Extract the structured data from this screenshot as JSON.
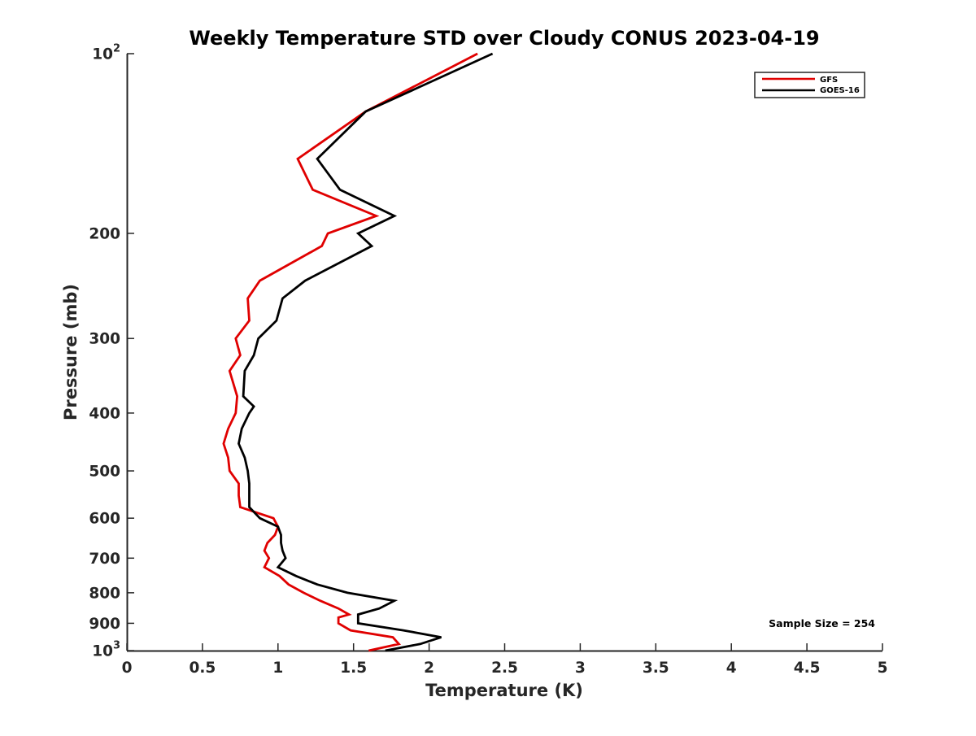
{
  "chart_data": {
    "type": "line",
    "title": "Weekly Temperature STD over Cloudy CONUS 2023-04-19",
    "xlabel": "Temperature (K)",
    "ylabel": "Pressure (mb)",
    "xlim": [
      0,
      5
    ],
    "ylim": [
      100,
      1000
    ],
    "y_scale": "log",
    "y_reversed": true,
    "grid": false,
    "legend_position": "top-right",
    "x_ticks": [
      0,
      0.5,
      1,
      1.5,
      2,
      2.5,
      3,
      3.5,
      4,
      4.5,
      5
    ],
    "x_tick_labels": [
      "0",
      "0.5",
      "1",
      "1.5",
      "2",
      "2.5",
      "3",
      "3.5",
      "4",
      "4.5",
      "5"
    ],
    "y_ticks": [
      100,
      200,
      300,
      400,
      500,
      600,
      700,
      800,
      900,
      1000
    ],
    "y_tick_labels": [
      {
        "base": "10",
        "exp": "2"
      },
      {
        "base": "200"
      },
      {
        "base": "300"
      },
      {
        "base": "400"
      },
      {
        "base": "500"
      },
      {
        "base": "600"
      },
      {
        "base": "700"
      },
      {
        "base": "800"
      },
      {
        "base": "900"
      },
      {
        "base": "10",
        "exp": "3"
      }
    ],
    "series": [
      {
        "name": "GFS",
        "color": "#e00000",
        "points": [
          [
            2.32,
            100
          ],
          [
            1.58,
            125
          ],
          [
            1.13,
            150
          ],
          [
            1.23,
            169
          ],
          [
            1.65,
            187
          ],
          [
            1.33,
            200
          ],
          [
            1.29,
            210
          ],
          [
            0.88,
            240
          ],
          [
            0.8,
            257
          ],
          [
            0.81,
            280
          ],
          [
            0.72,
            300
          ],
          [
            0.75,
            320
          ],
          [
            0.68,
            340
          ],
          [
            0.73,
            375
          ],
          [
            0.72,
            400
          ],
          [
            0.67,
            425
          ],
          [
            0.64,
            450
          ],
          [
            0.67,
            475
          ],
          [
            0.68,
            500
          ],
          [
            0.74,
            525
          ],
          [
            0.74,
            550
          ],
          [
            0.75,
            575
          ],
          [
            0.97,
            600
          ],
          [
            1.0,
            620
          ],
          [
            0.98,
            640
          ],
          [
            0.93,
            660
          ],
          [
            0.91,
            680
          ],
          [
            0.94,
            700
          ],
          [
            0.91,
            725
          ],
          [
            1.01,
            750
          ],
          [
            1.07,
            775
          ],
          [
            1.17,
            800
          ],
          [
            1.28,
            825
          ],
          [
            1.4,
            850
          ],
          [
            1.47,
            870
          ],
          [
            1.4,
            880
          ],
          [
            1.4,
            900
          ],
          [
            1.48,
            925
          ],
          [
            1.76,
            950
          ],
          [
            1.8,
            975
          ],
          [
            1.6,
            1000
          ]
        ]
      },
      {
        "name": "GOES-16",
        "color": "#000000",
        "points": [
          [
            2.42,
            100
          ],
          [
            1.58,
            125
          ],
          [
            1.26,
            150
          ],
          [
            1.41,
            169
          ],
          [
            1.77,
            187
          ],
          [
            1.53,
            200
          ],
          [
            1.62,
            210
          ],
          [
            1.18,
            240
          ],
          [
            1.03,
            257
          ],
          [
            0.99,
            280
          ],
          [
            0.87,
            300
          ],
          [
            0.84,
            320
          ],
          [
            0.78,
            340
          ],
          [
            0.77,
            375
          ],
          [
            0.84,
            390
          ],
          [
            0.81,
            400
          ],
          [
            0.76,
            425
          ],
          [
            0.74,
            450
          ],
          [
            0.78,
            475
          ],
          [
            0.8,
            500
          ],
          [
            0.81,
            525
          ],
          [
            0.81,
            550
          ],
          [
            0.81,
            575
          ],
          [
            0.88,
            600
          ],
          [
            1.0,
            620
          ],
          [
            1.02,
            640
          ],
          [
            1.02,
            660
          ],
          [
            1.03,
            680
          ],
          [
            1.05,
            700
          ],
          [
            1.0,
            725
          ],
          [
            1.12,
            750
          ],
          [
            1.26,
            775
          ],
          [
            1.46,
            800
          ],
          [
            1.77,
            825
          ],
          [
            1.67,
            850
          ],
          [
            1.53,
            870
          ],
          [
            1.53,
            880
          ],
          [
            1.53,
            900
          ],
          [
            1.83,
            925
          ],
          [
            2.08,
            950
          ],
          [
            1.94,
            975
          ],
          [
            1.71,
            1000
          ]
        ]
      }
    ],
    "annotation": "Sample Size = 254"
  }
}
